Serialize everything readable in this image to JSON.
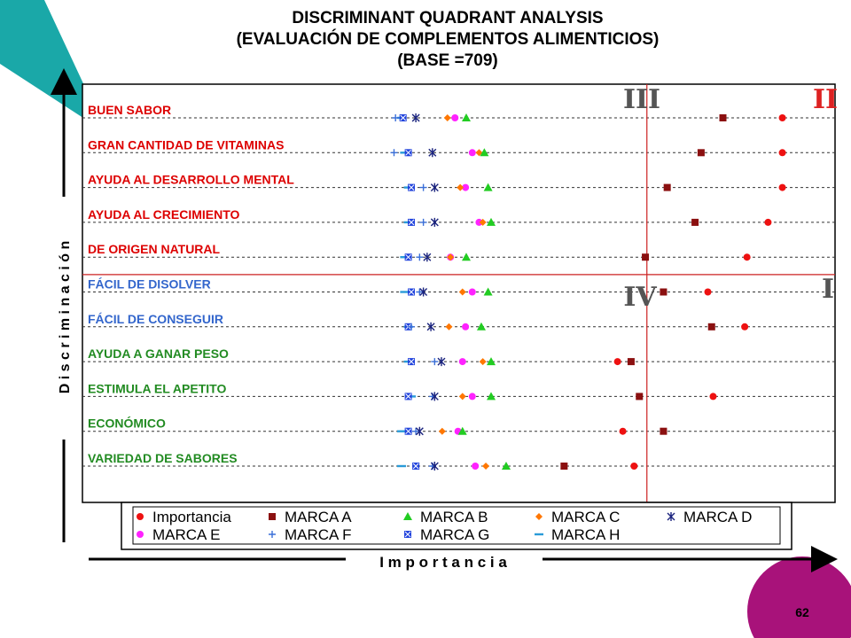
{
  "title": {
    "line1": "DISCRIMINANT QUADRANT ANALYSIS",
    "line2": "(EVALUACIÓN DE COMPLEMENTOS ALIMENTICIOS)",
    "line3": "(BASE =709)"
  },
  "page_number": "62",
  "colors": {
    "teal": "#1aa8a8",
    "magenta": "#a8127a"
  },
  "chart_data": {
    "type": "scatter",
    "xlabel": "I m p o r t a n c i a",
    "ylabel": "D i s c r i m i n a c i ó n",
    "quadrants": {
      "I": "I",
      "II": "II",
      "III": "III",
      "IV": "IV"
    },
    "divider_x": 75,
    "divider_row": 4.5,
    "xlim": [
      0,
      100
    ],
    "categories": [
      {
        "label": "BUEN SABOR",
        "color": "#dd0000"
      },
      {
        "label": "GRAN CANTIDAD DE VITAMINAS",
        "color": "#dd0000"
      },
      {
        "label": "AYUDA AL DESARROLLO MENTAL",
        "color": "#dd0000"
      },
      {
        "label": "AYUDA AL CRECIMIENTO",
        "color": "#dd0000"
      },
      {
        "label": "DE ORIGEN NATURAL",
        "color": "#dd0000"
      },
      {
        "label": "FÁCIL DE DISOLVER",
        "color": "#3366cc"
      },
      {
        "label": "FÁCIL DE CONSEGUIR",
        "color": "#3366cc"
      },
      {
        "label": "AYUDA A GANAR PESO",
        "color": "#228b22"
      },
      {
        "label": "ESTIMULA EL APETITO",
        "color": "#228b22"
      },
      {
        "label": "ECONÓMICO",
        "color": "#228b22"
      },
      {
        "label": "VARIEDAD DE SABORES",
        "color": "#228b22"
      }
    ],
    "series": [
      {
        "name": "Importancia",
        "marker": "circle",
        "color": "#ee1111",
        "values": [
          93.0,
          93.0,
          93.0,
          91.1,
          88.3,
          83.1,
          88.0,
          71.1,
          83.8,
          71.8,
          73.3
        ]
      },
      {
        "name": "MARCA A",
        "marker": "square",
        "color": "#8b1010",
        "values": [
          85.1,
          82.2,
          77.7,
          81.4,
          74.8,
          77.2,
          83.6,
          72.9,
          74.0,
          77.2,
          64.0
        ]
      },
      {
        "name": "MARCA B",
        "marker": "triangle",
        "color": "#22cc22",
        "values": [
          51.0,
          53.4,
          53.9,
          54.3,
          51.0,
          53.9,
          53.0,
          54.3,
          54.3,
          50.5,
          56.3
        ]
      },
      {
        "name": "MARCA C",
        "marker": "diamond",
        "color": "#ff7700",
        "values": [
          48.5,
          52.7,
          50.2,
          53.2,
          48.9,
          50.5,
          48.7,
          53.2,
          50.5,
          47.8,
          53.6
        ]
      },
      {
        "name": "MARCA D",
        "marker": "asterisk",
        "color": "#1a237e",
        "values": [
          44.3,
          46.5,
          46.8,
          46.8,
          45.8,
          45.3,
          46.3,
          47.7,
          46.8,
          44.8,
          46.8
        ]
      },
      {
        "name": "MARCA E",
        "marker": "circle",
        "color": "#ff22ff",
        "values": [
          49.5,
          51.8,
          50.9,
          52.7,
          48.9,
          51.8,
          50.9,
          50.5,
          51.8,
          49.9,
          52.2
        ]
      },
      {
        "name": "MARCA F",
        "marker": "plus",
        "color": "#3a6fd8",
        "values": [
          41.6,
          41.4,
          45.3,
          45.3,
          44.8,
          44.8,
          43.7,
          46.8,
          46.5,
          44.3,
          46.5
        ]
      },
      {
        "name": "MARCA G",
        "marker": "square-x",
        "color": "#2244dd",
        "values": [
          42.6,
          43.3,
          43.7,
          43.7,
          43.3,
          43.7,
          43.3,
          43.7,
          43.3,
          43.3,
          44.3
        ]
      },
      {
        "name": "MARCA H",
        "marker": "dash",
        "color": "#2a9bd8",
        "values": [
          42.4,
          42.8,
          43.3,
          43.3,
          42.8,
          42.8,
          43.3,
          43.3,
          43.7,
          42.4,
          42.4
        ]
      }
    ],
    "legend_order": [
      "Importancia",
      "MARCA A",
      "MARCA B",
      "MARCA C",
      "MARCA D",
      "MARCA E",
      "MARCA F",
      "MARCA G",
      "MARCA H"
    ],
    "legend_position": "bottom",
    "grid": "horizontal-dotted"
  }
}
